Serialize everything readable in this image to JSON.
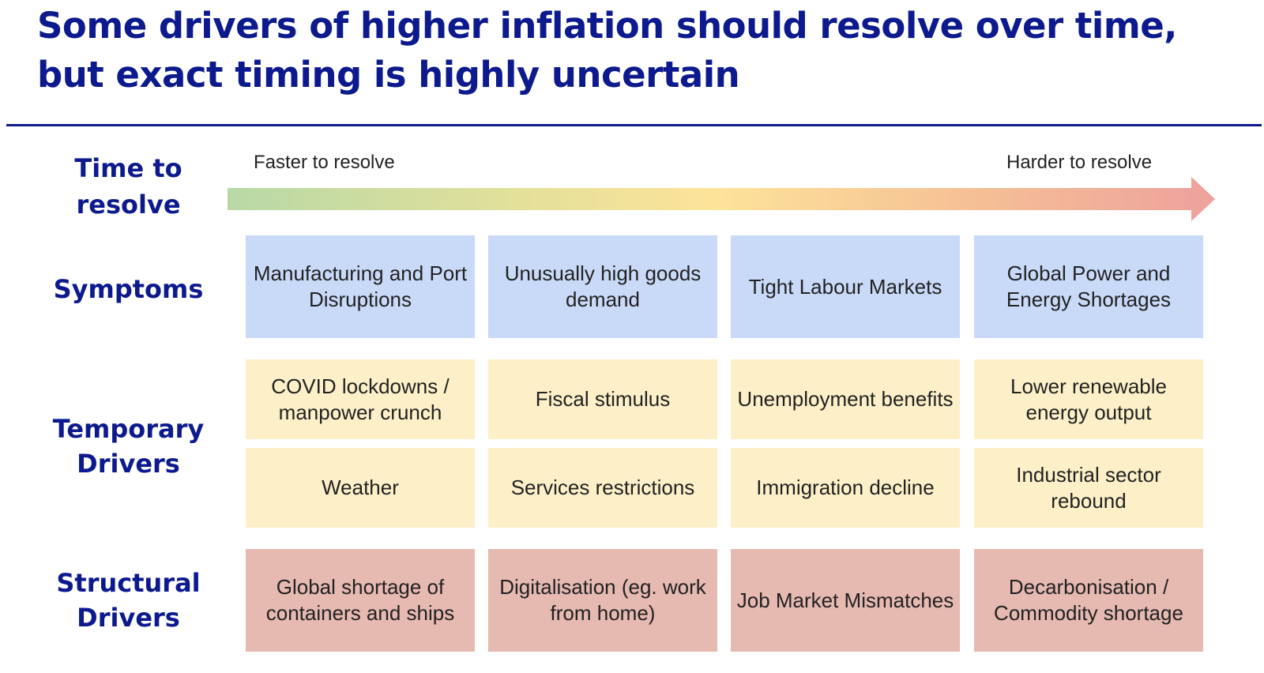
{
  "title": {
    "line1": "Some drivers of higher inflation should resolve over time,",
    "line2": "but exact timing is highly uncertain"
  },
  "rows": {
    "time": {
      "line1": "Time to",
      "line2": "resolve"
    },
    "symptoms": {
      "line1": "Symptoms"
    },
    "temporary": {
      "line1": "Temporary",
      "line2": "Drivers"
    },
    "structural": {
      "line1": "Structural",
      "line2": "Drivers"
    }
  },
  "arrow": {
    "left_label": "Faster to resolve",
    "right_label": "Harder to resolve"
  },
  "symptoms": [
    "Manufacturing and Port Disruptions",
    "Unusually high goods demand",
    "Tight Labour Markets",
    "Global Power and Energy Shortages"
  ],
  "temporary_row1": [
    "COVID lockdowns / manpower crunch",
    "Fiscal stimulus",
    "Unemployment benefits",
    "Lower renewable energy output"
  ],
  "temporary_row2": [
    "Weather",
    "Services restrictions",
    "Immigration decline",
    "Industrial sector rebound"
  ],
  "structural": [
    "Global shortage of containers and ships",
    "Digitalisation (eg. work from home)",
    "Job Market Mismatches",
    "Decarbonisation / Commodity shortage"
  ],
  "colors": {
    "title": "#0c1a8e",
    "symptom_box": "#c9daf8",
    "temporary_box": "#fdf0c8",
    "structural_box": "#e6b9b1",
    "arrow_start": "#b8d9a6",
    "arrow_mid": "#fde39a",
    "arrow_end": "#eea39c"
  }
}
